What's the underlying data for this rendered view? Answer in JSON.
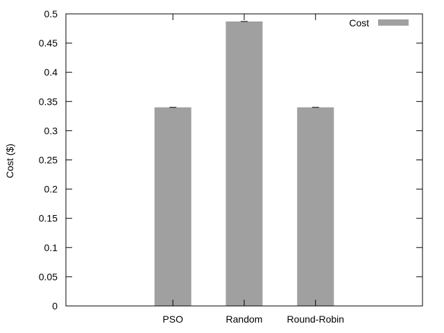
{
  "chart_data": {
    "type": "bar",
    "title": "",
    "xlabel": "",
    "ylabel": "Cost ($)",
    "categories": [
      "PSO",
      "Random",
      "Round-Robin"
    ],
    "series": [
      {
        "name": "Cost",
        "values": [
          0.34,
          0.487,
          0.34
        ],
        "color": "#a0a0a0"
      }
    ],
    "ylim": [
      0,
      0.5
    ],
    "yticks": [
      "0",
      "0.05",
      "0.1",
      "0.15",
      "0.2",
      "0.25",
      "0.3",
      "0.35",
      "0.4",
      "0.45",
      "0.5"
    ],
    "legend_position": "top-right",
    "grid": false,
    "error_bars": true
  }
}
